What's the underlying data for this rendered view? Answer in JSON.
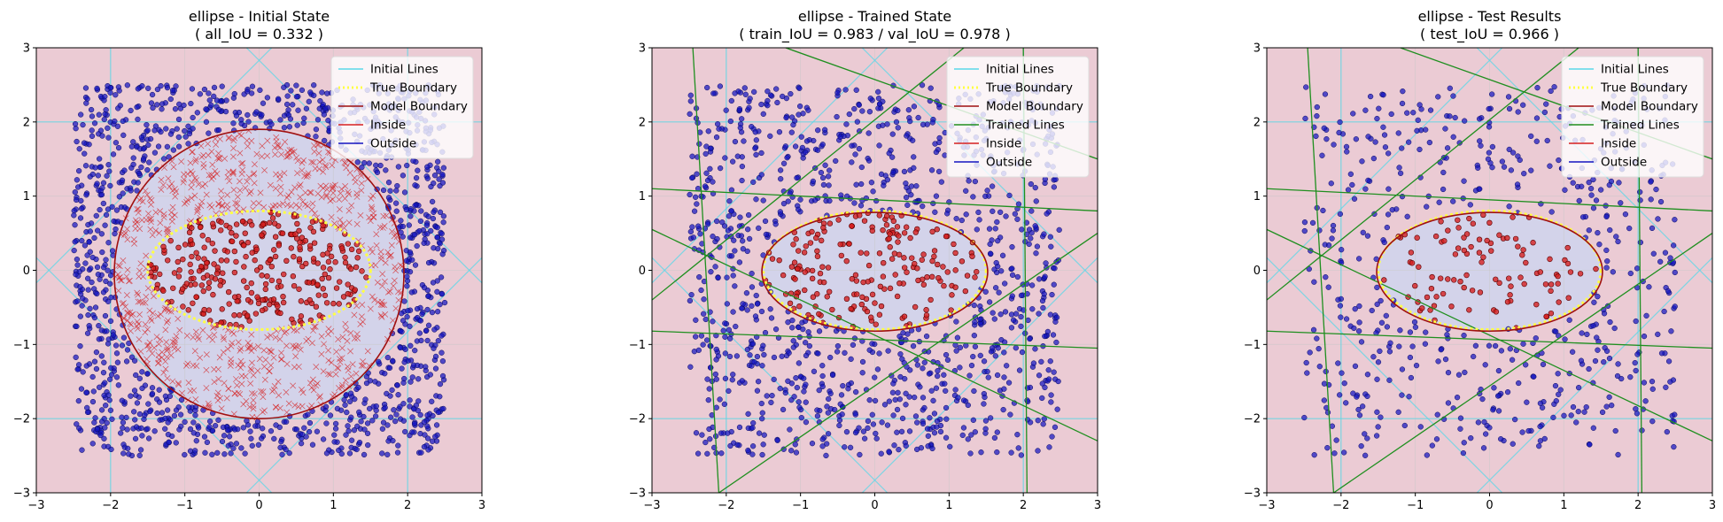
{
  "colors": {
    "background_fill": "#ebcbd4",
    "model_inside_fill": "#d3d3ea",
    "initial_lines": "#5ad8e8",
    "true_boundary": "#ffff44",
    "model_boundary": "#a01010",
    "trained_lines": "#1f8f1f",
    "inside_points": "#d62020",
    "outside_points": "#1515c0",
    "grid": "#c8c8c8"
  },
  "chart_data": [
    {
      "type": "scatter",
      "title_line1": "ellipse - Initial State",
      "title_line2": "( all_IoU = 0.332 )",
      "xlim": [
        -3,
        3
      ],
      "ylim": [
        -3,
        3
      ],
      "xticks": [
        "−3",
        "−2",
        "−1",
        "0",
        "1",
        "2",
        "3"
      ],
      "yticks": [
        "−3",
        "−2",
        "−1",
        "0",
        "1",
        "2",
        "3"
      ],
      "grid": true,
      "legend_position": "top-right",
      "legend": [
        "Initial Lines",
        "True Boundary",
        "Model Boundary",
        "Inside",
        "Outside"
      ],
      "true_boundary": {
        "shape": "ellipse",
        "center": [
          0,
          0
        ],
        "semi_axis_x": 1.5,
        "semi_axis_y": 0.8
      },
      "model_boundary": {
        "shape": "rounded",
        "center": [
          0,
          -0.05
        ],
        "semi_axis_x": 1.95,
        "semi_axis_y": 1.95
      },
      "sample_points": {
        "count": 2200,
        "range": [
          -2.5,
          2.5
        ],
        "misclassified_marker": "x"
      },
      "initial_lines": [
        {
          "a": 1,
          "b": 0,
          "c": -2
        },
        {
          "a": 1,
          "b": 0,
          "c": 2
        },
        {
          "a": 0,
          "b": 1,
          "c": -2
        },
        {
          "a": 0,
          "b": 1,
          "c": 2
        },
        {
          "a": 1,
          "b": -1,
          "c": -2.83
        },
        {
          "a": 1,
          "b": -1,
          "c": 2.83
        },
        {
          "a": 1,
          "b": 1,
          "c": -2.83
        },
        {
          "a": 1,
          "b": 1,
          "c": 2.83
        }
      ],
      "trained_lines": []
    },
    {
      "type": "scatter",
      "title_line1": "ellipse - Trained State",
      "title_line2": "( train_IoU = 0.983 / val_IoU = 0.978 )",
      "xlim": [
        -3,
        3
      ],
      "ylim": [
        -3,
        3
      ],
      "xticks": [
        "−3",
        "−2",
        "−1",
        "0",
        "1",
        "2",
        "3"
      ],
      "yticks": [
        "−3",
        "−2",
        "−1",
        "0",
        "1",
        "2",
        "3"
      ],
      "grid": true,
      "legend_position": "top-right",
      "legend": [
        "Initial Lines",
        "True Boundary",
        "Model Boundary",
        "Trained Lines",
        "Inside",
        "Outside"
      ],
      "true_boundary": {
        "shape": "ellipse",
        "center": [
          0,
          0
        ],
        "semi_axis_x": 1.5,
        "semi_axis_y": 0.8
      },
      "model_boundary": {
        "shape": "ellipse",
        "center": [
          0,
          -0.02
        ],
        "semi_axis_x": 1.52,
        "semi_axis_y": 0.8
      },
      "sample_points": {
        "count": 1300,
        "range": [
          -2.5,
          2.5
        ],
        "misclassified_marker": "none"
      },
      "initial_lines": [
        {
          "a": 1,
          "b": 0,
          "c": -2
        },
        {
          "a": 1,
          "b": 0,
          "c": 2
        },
        {
          "a": 0,
          "b": 1,
          "c": -2
        },
        {
          "a": 0,
          "b": 1,
          "c": 2
        },
        {
          "a": 1,
          "b": -1,
          "c": -2.83
        },
        {
          "a": 1,
          "b": -1,
          "c": 2.83
        },
        {
          "a": 1,
          "b": 1,
          "c": -2.83
        },
        {
          "a": 1,
          "b": 1,
          "c": 2.83
        }
      ],
      "trained_lines": [
        {
          "x1": -2.45,
          "y1": 3,
          "x2": -2.1,
          "y2": -3
        },
        {
          "x1": 2.0,
          "y1": 3,
          "x2": 2.05,
          "y2": -3
        },
        {
          "x1": -3,
          "y1": 1.1,
          "x2": 3,
          "y2": 0.8
        },
        {
          "x1": -3,
          "y1": -0.82,
          "x2": 3,
          "y2": -1.05
        },
        {
          "x1": -3,
          "y1": 0.55,
          "x2": 3,
          "y2": -2.3
        },
        {
          "x1": -1.2,
          "y1": 3,
          "x2": 3,
          "y2": 1.5
        },
        {
          "x1": -3,
          "y1": -0.4,
          "x2": 1.2,
          "y2": 3
        },
        {
          "x1": -2.1,
          "y1": -3,
          "x2": 3,
          "y2": 0.5
        }
      ]
    },
    {
      "type": "scatter",
      "title_line1": "ellipse - Test Results",
      "title_line2": "( test_IoU = 0.966 )",
      "xlim": [
        -3,
        3
      ],
      "ylim": [
        -3,
        3
      ],
      "xticks": [
        "−3",
        "−2",
        "−1",
        "0",
        "1",
        "2",
        "3"
      ],
      "yticks": [
        "−3",
        "−2",
        "−1",
        "0",
        "1",
        "2",
        "3"
      ],
      "grid": true,
      "legend_position": "top-right",
      "legend": [
        "Initial Lines",
        "True Boundary",
        "Model Boundary",
        "Trained Lines",
        "Inside",
        "Outside"
      ],
      "true_boundary": {
        "shape": "ellipse",
        "center": [
          0,
          0
        ],
        "semi_axis_x": 1.5,
        "semi_axis_y": 0.8
      },
      "model_boundary": {
        "shape": "ellipse",
        "center": [
          0,
          -0.02
        ],
        "semi_axis_x": 1.52,
        "semi_axis_y": 0.8
      },
      "sample_points": {
        "count": 650,
        "range": [
          -2.5,
          2.5
        ],
        "misclassified_marker": "none"
      },
      "initial_lines": [
        {
          "a": 1,
          "b": 0,
          "c": -2
        },
        {
          "a": 1,
          "b": 0,
          "c": 2
        },
        {
          "a": 0,
          "b": 1,
          "c": -2
        },
        {
          "a": 0,
          "b": 1,
          "c": 2
        },
        {
          "a": 1,
          "b": -1,
          "c": -2.83
        },
        {
          "a": 1,
          "b": -1,
          "c": 2.83
        },
        {
          "a": 1,
          "b": 1,
          "c": -2.83
        },
        {
          "a": 1,
          "b": 1,
          "c": 2.83
        }
      ],
      "trained_lines": [
        {
          "x1": -2.45,
          "y1": 3,
          "x2": -2.1,
          "y2": -3
        },
        {
          "x1": 2.0,
          "y1": 3,
          "x2": 2.05,
          "y2": -3
        },
        {
          "x1": -3,
          "y1": 1.1,
          "x2": 3,
          "y2": 0.8
        },
        {
          "x1": -3,
          "y1": -0.82,
          "x2": 3,
          "y2": -1.05
        },
        {
          "x1": -3,
          "y1": 0.55,
          "x2": 3,
          "y2": -2.3
        },
        {
          "x1": -1.2,
          "y1": 3,
          "x2": 3,
          "y2": 1.5
        },
        {
          "x1": -3,
          "y1": -0.4,
          "x2": 1.2,
          "y2": 3
        },
        {
          "x1": -2.1,
          "y1": -3,
          "x2": 3,
          "y2": 0.5
        }
      ]
    }
  ]
}
